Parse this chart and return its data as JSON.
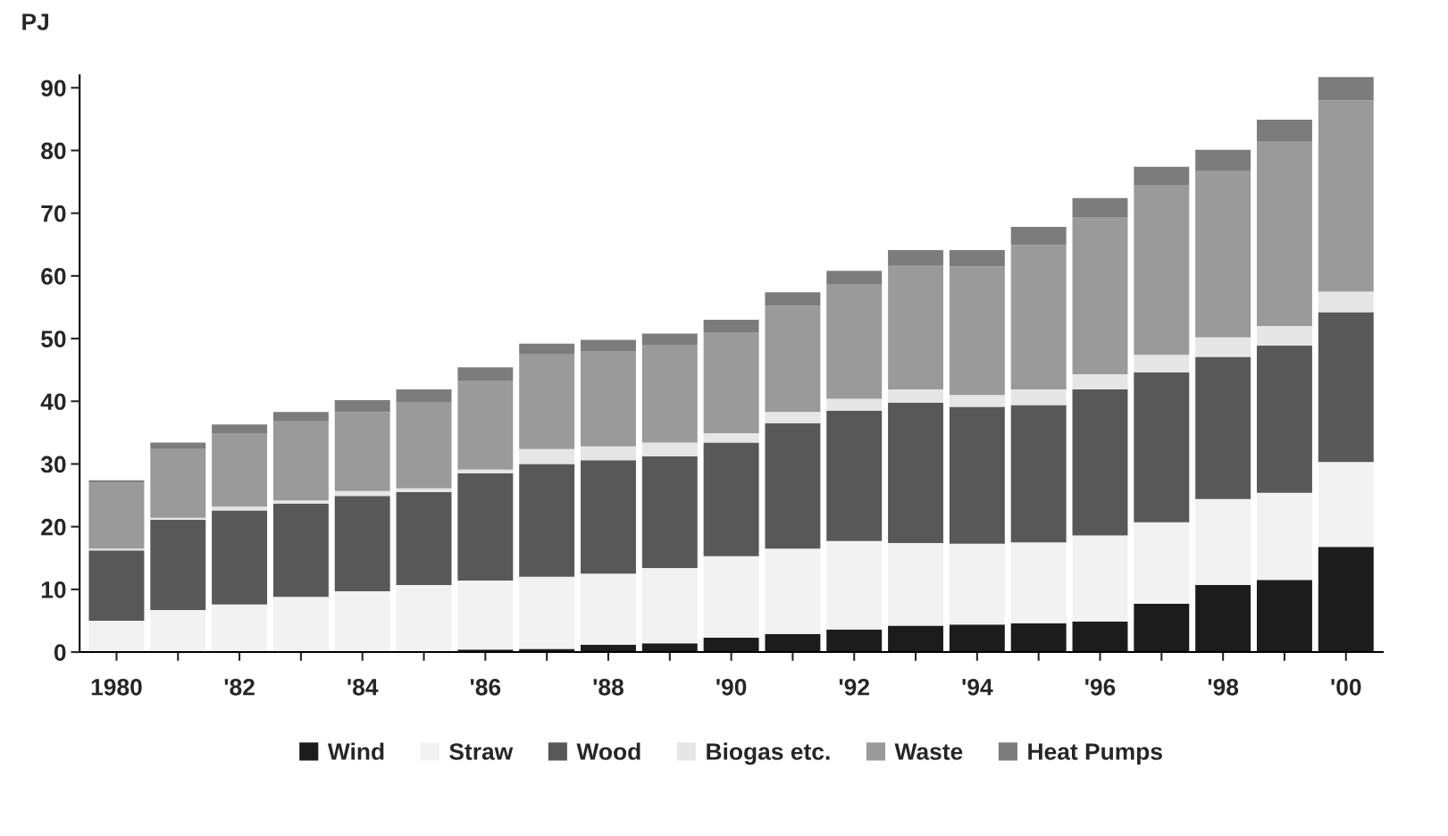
{
  "chart_data": {
    "type": "bar",
    "stacked": true,
    "ylabel": "PJ",
    "categories": [
      "1980",
      null,
      "'82",
      null,
      "'84",
      null,
      "'86",
      null,
      "'88",
      null,
      "'90",
      null,
      "'92",
      null,
      "'94",
      null,
      "'96",
      null,
      "'98",
      null,
      "'00"
    ],
    "series": [
      {
        "name": "Wind",
        "color": "#1c1c1c",
        "values": [
          0,
          0,
          0,
          0,
          0,
          0.1,
          0.4,
          0.5,
          1.2,
          1.4,
          2.3,
          2.9,
          3.6,
          4.2,
          4.4,
          4.6,
          4.9,
          7.7,
          10.7,
          11.5,
          16.8
        ]
      },
      {
        "name": "Straw",
        "color": "#f2f2f2",
        "values": [
          5.0,
          6.7,
          7.6,
          8.8,
          9.7,
          10.6,
          11.0,
          11.5,
          11.3,
          12.0,
          13.0,
          13.6,
          14.1,
          13.2,
          12.9,
          12.9,
          13.7,
          13.0,
          13.7,
          13.9,
          13.5
        ]
      },
      {
        "name": "Wood",
        "color": "#585858",
        "values": [
          11.2,
          14.4,
          15.0,
          14.9,
          15.2,
          14.8,
          17.1,
          18.0,
          18.1,
          17.8,
          18.1,
          20.0,
          20.8,
          22.4,
          21.8,
          21.9,
          23.3,
          23.9,
          22.7,
          23.5,
          23.9
        ]
      },
      {
        "name": "Biogas etc.",
        "color": "#e6e6e6",
        "values": [
          0.3,
          0.3,
          0.6,
          0.5,
          0.8,
          0.6,
          0.6,
          2.4,
          2.2,
          2.2,
          1.5,
          1.8,
          1.9,
          2.1,
          1.9,
          2.5,
          2.4,
          2.8,
          3.1,
          3.1,
          3.3
        ]
      },
      {
        "name": "Waste",
        "color": "#9a9a9a",
        "values": [
          10.5,
          11.0,
          11.7,
          12.6,
          12.6,
          13.7,
          14.1,
          15.1,
          15.2,
          15.6,
          16.1,
          16.9,
          18.2,
          19.8,
          20.5,
          23.0,
          25.1,
          27.0,
          26.5,
          29.4,
          30.5
        ]
      },
      {
        "name": "Heat Pumps",
        "color": "#7c7c7c",
        "values": [
          0.4,
          1.0,
          1.4,
          1.5,
          1.9,
          2.1,
          2.2,
          1.7,
          1.8,
          1.8,
          2.0,
          2.2,
          2.2,
          2.4,
          2.6,
          2.9,
          3.0,
          3.0,
          3.4,
          3.5,
          3.7
        ]
      }
    ],
    "ylim": [
      0,
      92
    ],
    "yticks": [
      0,
      10,
      20,
      30,
      40,
      50,
      60,
      70,
      80,
      90
    ],
    "legend": "bottom",
    "grid": false
  }
}
